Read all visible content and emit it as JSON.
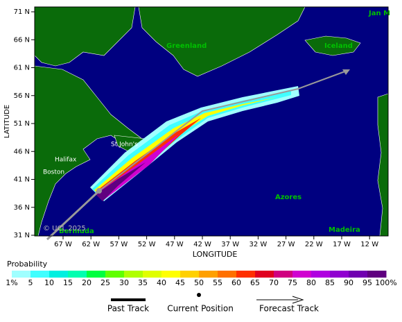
{
  "map": {
    "y_axis_label": "LATITUDE",
    "x_axis_label": "LONGITUDE",
    "lat_ticks": [
      "71 N",
      "66 N",
      "61 N",
      "56 N",
      "51 N",
      "46 N",
      "41 N",
      "36 N",
      "31 N"
    ],
    "lon_ticks": [
      "67 W",
      "62 W",
      "57 W",
      "52 W",
      "47 W",
      "42 W",
      "37 W",
      "32 W",
      "27 W",
      "22 W",
      "17 W",
      "12 W"
    ],
    "places": {
      "greenland": "Greenland",
      "iceland": "Iceland",
      "jan": "Jan M",
      "stjohns": "St John's",
      "halifax": "Halifax",
      "boston": "Boston",
      "azores": "Azores",
      "bermuda": "Bermuda",
      "madeira": "Madeira"
    },
    "copyright": "© UCL 2025"
  },
  "legend": {
    "title": "Probability",
    "labels": [
      "1%",
      "5",
      "10",
      "15",
      "20",
      "25",
      "30",
      "35",
      "40",
      "45",
      "50",
      "55",
      "60",
      "65",
      "70",
      "75",
      "80",
      "85",
      "90",
      "95",
      "100%"
    ],
    "colors": [
      "#a0ffff",
      "#40ffff",
      "#00f0e0",
      "#00ffb0",
      "#00ff40",
      "#60ff00",
      "#b0ff00",
      "#e0ff00",
      "#ffff00",
      "#ffd000",
      "#ffa000",
      "#ff7000",
      "#ff3000",
      "#e00020",
      "#d00080",
      "#d000d0",
      "#b000e0",
      "#9000d0",
      "#7000b0",
      "#600080"
    ],
    "past_track": "Past Track",
    "current_position": "Current Position",
    "forecast_track": "Forecast Track"
  }
}
